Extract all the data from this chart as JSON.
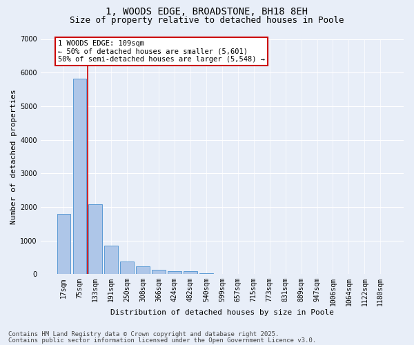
{
  "title_line1": "1, WOODS EDGE, BROADSTONE, BH18 8EH",
  "title_line2": "Size of property relative to detached houses in Poole",
  "xlabel": "Distribution of detached houses by size in Poole",
  "ylabel": "Number of detached properties",
  "categories": [
    "17sqm",
    "75sqm",
    "133sqm",
    "191sqm",
    "250sqm",
    "308sqm",
    "366sqm",
    "424sqm",
    "482sqm",
    "540sqm",
    "599sqm",
    "657sqm",
    "715sqm",
    "773sqm",
    "831sqm",
    "889sqm",
    "947sqm",
    "1006sqm",
    "1064sqm",
    "1122sqm",
    "1180sqm"
  ],
  "values": [
    1800,
    5820,
    2090,
    840,
    370,
    230,
    130,
    80,
    80,
    35,
    0,
    0,
    0,
    0,
    0,
    0,
    0,
    0,
    0,
    0,
    0
  ],
  "bar_color": "#aec6e8",
  "bar_edge_color": "#5b9bd5",
  "bg_color": "#e8eef8",
  "grid_color": "#ffffff",
  "vline_color": "#cc0000",
  "vline_x_index": 1.5,
  "annotation_text": "1 WOODS EDGE: 109sqm\n← 50% of detached houses are smaller (5,601)\n50% of semi-detached houses are larger (5,548) →",
  "annotation_box_color": "#cc0000",
  "ylim": [
    0,
    7000
  ],
  "yticks": [
    0,
    1000,
    2000,
    3000,
    4000,
    5000,
    6000,
    7000
  ],
  "footer_line1": "Contains HM Land Registry data © Crown copyright and database right 2025.",
  "footer_line2": "Contains public sector information licensed under the Open Government Licence v3.0.",
  "title_fontsize": 10,
  "subtitle_fontsize": 9,
  "axis_label_fontsize": 8,
  "tick_fontsize": 7,
  "footer_fontsize": 6.5,
  "annot_fontsize": 7.5
}
